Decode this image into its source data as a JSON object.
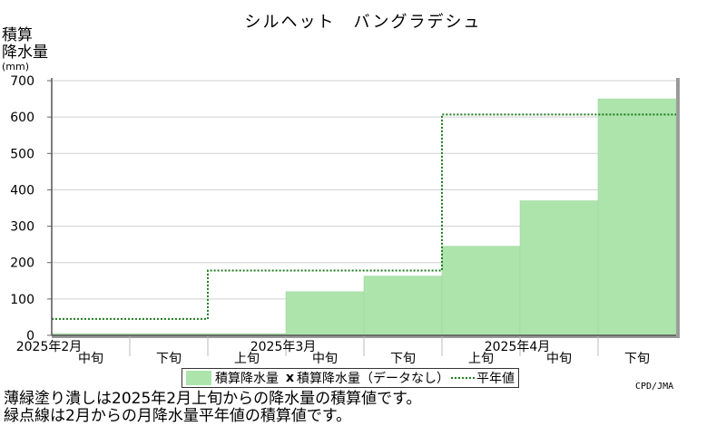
{
  "chart_data": {
    "type": "bar",
    "title": "シルヘット　バングラデシュ",
    "ylabel_line1": "積算",
    "ylabel_line2": "降水量",
    "ylabel_unit": "(mm)",
    "ylim": [
      0,
      700
    ],
    "yticks": [
      0,
      100,
      200,
      300,
      400,
      500,
      600,
      700
    ],
    "periods": [
      "2月中旬",
      "2月下旬",
      "3月上旬",
      "3月中旬",
      "3月下旬",
      "4月上旬",
      "4月中旬",
      "4月下旬"
    ],
    "period_labels": [
      "中旬",
      "下旬",
      "上旬",
      "中旬",
      "下旬",
      "上旬",
      "中旬",
      "下旬"
    ],
    "month_labels": [
      {
        "label": "2025年2月",
        "at_period": 0
      },
      {
        "label": "2025年3月",
        "at_period": 3
      },
      {
        "label": "2025年4月",
        "at_period": 6
      }
    ],
    "series": [
      {
        "name": "積算降水量",
        "style": "filled-area",
        "color": "#ace4ab",
        "values": [
          5,
          5,
          5,
          120,
          163,
          245,
          370,
          650
        ]
      },
      {
        "name": "平年値",
        "style": "dotted-step",
        "color": "#1e7b1e",
        "values": [
          45,
          45,
          178,
          178,
          178,
          607,
          607,
          607
        ]
      }
    ],
    "grid": true
  },
  "legend": {
    "filled": "積算降水量",
    "nodata_mark": "x",
    "nodata": "積算降水量（データなし）",
    "normal": "平年値"
  },
  "credit": "CPD/JMA",
  "notes": [
    "薄緑塗り潰しは2025年2月上旬からの降水量の積算値です。",
    "緑点線は2月からの月降水量平年値の積算値です。"
  ]
}
